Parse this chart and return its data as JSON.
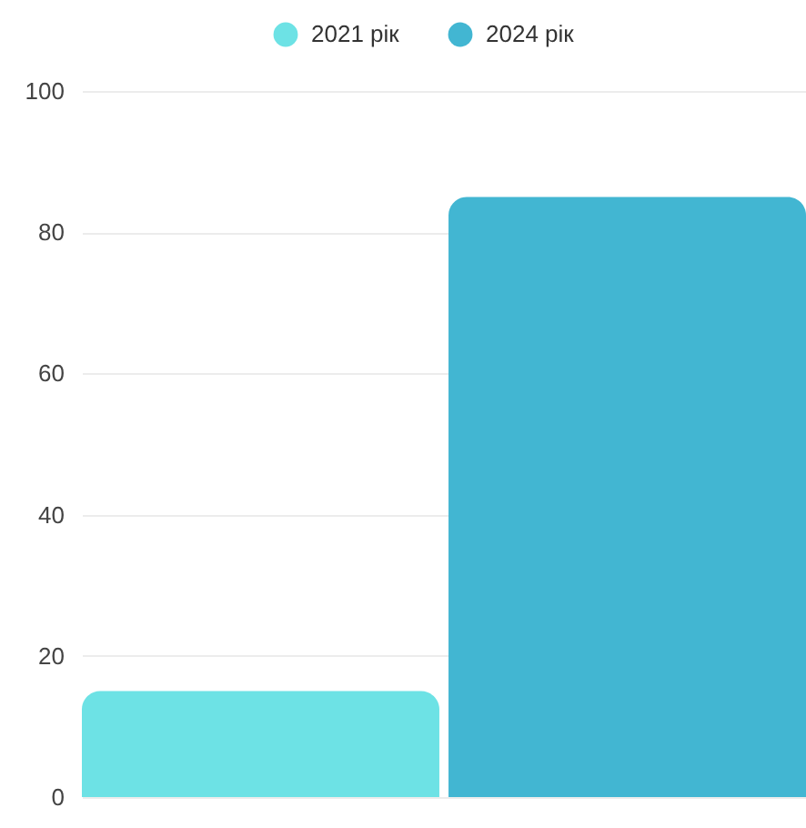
{
  "chart_data": {
    "type": "bar",
    "categories": [
      null
    ],
    "series": [
      {
        "name": "2021 рік",
        "color": "#6de2e5",
        "values": [
          15
        ]
      },
      {
        "name": "2024 рік",
        "color": "#42b6d2",
        "values": [
          85
        ]
      }
    ],
    "ylim": [
      0,
      100
    ],
    "yticks": [
      0,
      20,
      40,
      60,
      80,
      100
    ],
    "grid": "y",
    "legend": "top"
  }
}
